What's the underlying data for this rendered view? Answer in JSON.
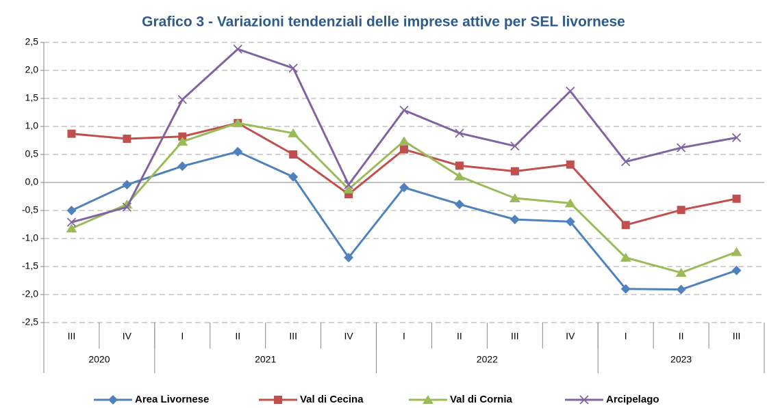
{
  "chart_data": {
    "type": "line",
    "title": "Grafico 3 - Variazioni tendenziali delle imprese attive per SEL livornese",
    "categories": [
      "III",
      "IV",
      "I",
      "II",
      "III",
      "IV",
      "I",
      "II",
      "III",
      "IV",
      "I",
      "II",
      "III"
    ],
    "x_groups": [
      {
        "label": "2020",
        "count": 2
      },
      {
        "label": "2021",
        "count": 4
      },
      {
        "label": "2022",
        "count": 4
      },
      {
        "label": "2023",
        "count": 3
      }
    ],
    "series": [
      {
        "name": "Area Livornese",
        "color": "#4f81bd",
        "marker": "diamond",
        "values": [
          -0.5,
          -0.04,
          0.29,
          0.55,
          0.1,
          -1.34,
          -0.09,
          -0.39,
          -0.66,
          -0.7,
          -1.9,
          -1.91,
          -1.57
        ]
      },
      {
        "name": "Val di Cecina",
        "color": "#c0504d",
        "marker": "square",
        "values": [
          0.87,
          0.78,
          0.82,
          1.06,
          0.5,
          -0.21,
          0.59,
          0.3,
          0.2,
          0.32,
          -0.76,
          -0.49,
          -0.29
        ]
      },
      {
        "name": "Val di Cornia",
        "color": "#9bbb59",
        "marker": "triangle",
        "values": [
          -0.82,
          -0.39,
          0.73,
          1.06,
          0.88,
          -0.12,
          0.74,
          0.11,
          -0.28,
          -0.37,
          -1.34,
          -1.61,
          -1.24
        ]
      },
      {
        "name": "Arcipelago",
        "color": "#8064a2",
        "marker": "x",
        "values": [
          -0.71,
          -0.44,
          1.48,
          2.38,
          2.04,
          -0.04,
          1.29,
          0.88,
          0.65,
          1.63,
          0.37,
          0.62,
          0.8
        ]
      }
    ],
    "ylim": [
      -2.5,
      2.5
    ],
    "yticks": [
      {
        "value": -2.5,
        "label": "-2,5"
      },
      {
        "value": -2,
        "label": "-2,0"
      },
      {
        "value": -1.5,
        "label": "-1,5"
      },
      {
        "value": -1,
        "label": "-1,0"
      },
      {
        "value": -0.5,
        "label": "-0,5"
      },
      {
        "value": 0,
        "label": "0,0"
      },
      {
        "value": 0.5,
        "label": "0,5"
      },
      {
        "value": 1,
        "label": "1,0"
      },
      {
        "value": 1.5,
        "label": "1,5"
      },
      {
        "value": 2,
        "label": "2,0"
      },
      {
        "value": 2.5,
        "label": "2,5"
      }
    ],
    "grid": true,
    "legend": "bottom"
  }
}
